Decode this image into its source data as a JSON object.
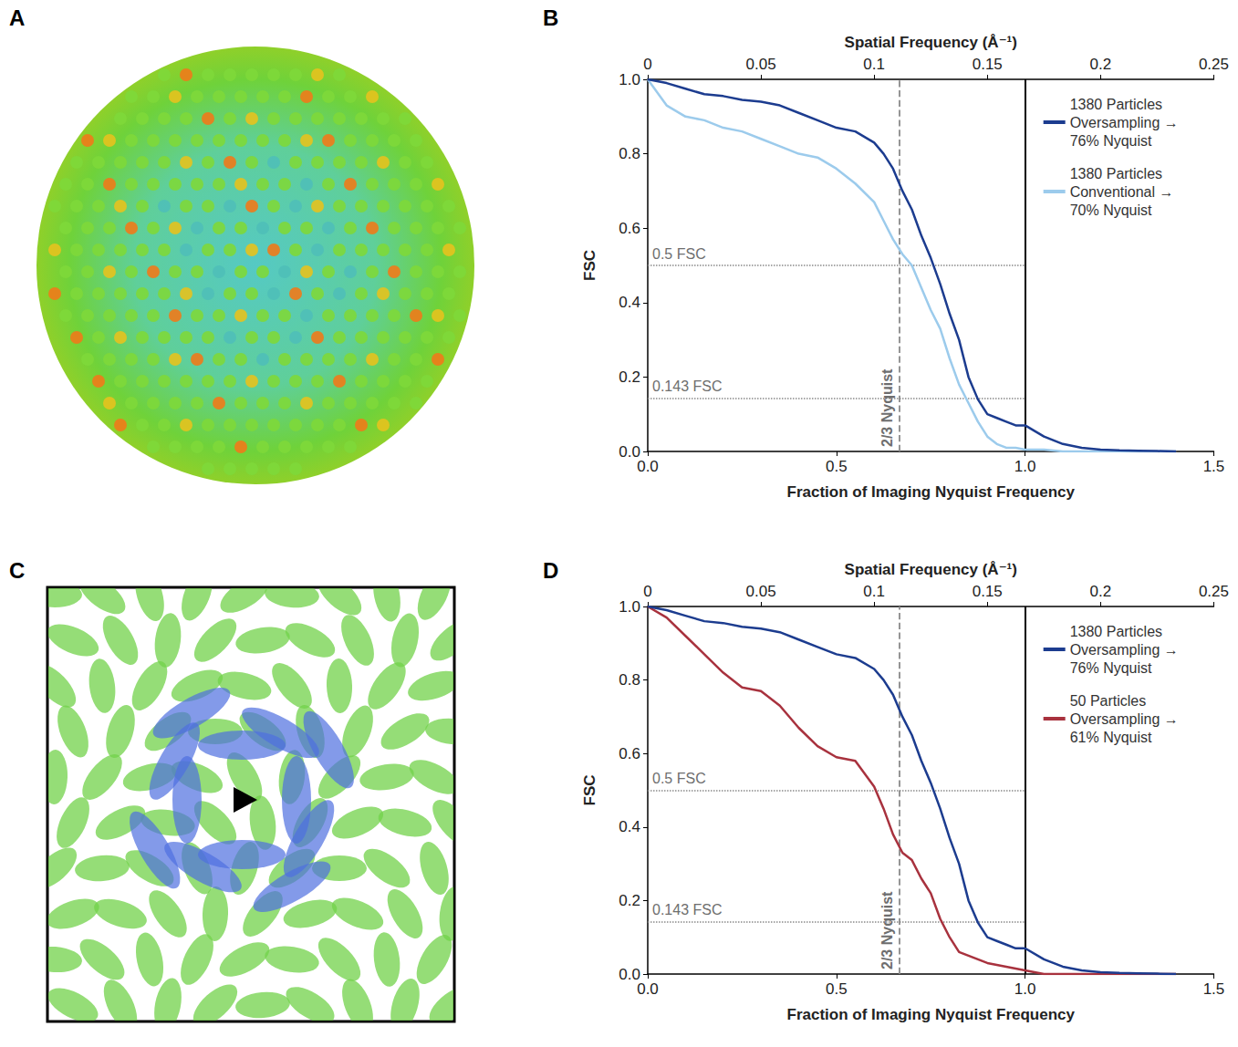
{
  "image_panels": [
    {
      "panel": "A"
    },
    {
      "panel": "C"
    }
  ],
  "chart_data": [
    {
      "panel": "B",
      "type": "line",
      "xlabel": "Fraction of Imaging Nyquist Frequency",
      "ylabel": "FSC",
      "x2label": "Spatial Frequency (Å⁻¹)",
      "xlim": [
        0,
        1.5
      ],
      "xticks": [
        {
          "value": 0,
          "label": "0.0"
        },
        {
          "value": 0.5,
          "label": "0.5"
        },
        {
          "value": 1,
          "label": "1.0"
        },
        {
          "value": 1.5,
          "label": "1.5"
        }
      ],
      "x2lim": [
        0,
        0.25
      ],
      "x2ticks": [
        0,
        0.05,
        0.1,
        0.15,
        0.2,
        0.25
      ],
      "ylim": [
        0,
        1
      ],
      "yticks": [
        {
          "value": 0,
          "label": "0.0"
        },
        {
          "value": 0.2,
          "label": "0.2"
        },
        {
          "value": 0.4,
          "label": "0.4"
        },
        {
          "value": 0.6,
          "label": "0.6"
        },
        {
          "value": 0.8,
          "label": "0.8"
        },
        {
          "value": 1,
          "label": "1.0"
        }
      ],
      "grid": false,
      "legend": "upper right",
      "hlines": [
        {
          "value": 0.5,
          "label": "0.5 FSC",
          "line_style": "dotted"
        },
        {
          "value": 0.143,
          "label": "0.143 FSC",
          "line_style": "dotted"
        }
      ],
      "vlines": [
        {
          "value": 0.6667,
          "label": "2/3 Nyquist",
          "line_style": "dashed"
        },
        {
          "value": 1,
          "line_style": "solid"
        }
      ],
      "x": [
        0,
        0.05,
        0.1,
        0.15,
        0.2,
        0.25,
        0.3,
        0.35,
        0.4,
        0.45,
        0.5,
        0.55,
        0.6,
        0.625,
        0.65,
        0.675,
        0.7,
        0.725,
        0.75,
        0.775,
        0.8,
        0.825,
        0.85,
        0.875,
        0.9,
        0.925,
        0.95,
        0.975,
        1.0,
        1.05,
        1.1,
        1.15,
        1.2,
        1.25,
        1.3,
        1.35,
        1.4
      ],
      "series": [
        {
          "name": "1380 Particles Oversampling → 76% Nyquist",
          "color": "#1c3c8f",
          "values": [
            1.0,
            0.99,
            0.975,
            0.96,
            0.955,
            0.945,
            0.94,
            0.93,
            0.91,
            0.89,
            0.87,
            0.86,
            0.83,
            0.8,
            0.76,
            0.7,
            0.65,
            0.58,
            0.52,
            0.45,
            0.37,
            0.3,
            0.2,
            0.14,
            0.1,
            0.09,
            0.08,
            0.07,
            0.07,
            0.04,
            0.02,
            0.01,
            0.005,
            0.003,
            0.002,
            0.001,
            0.0
          ]
        },
        {
          "name": "1380 Particles Conventional → 70% Nyquist",
          "color": "#9ccbec",
          "values": [
            1.0,
            0.93,
            0.9,
            0.89,
            0.87,
            0.86,
            0.84,
            0.82,
            0.8,
            0.79,
            0.76,
            0.72,
            0.67,
            0.62,
            0.57,
            0.53,
            0.5,
            0.44,
            0.38,
            0.33,
            0.25,
            0.18,
            0.13,
            0.08,
            0.04,
            0.02,
            0.01,
            0.01,
            0.005,
            0.005,
            0.0,
            0.0,
            0.0,
            0.0,
            0.0,
            0.0,
            0.0
          ]
        }
      ]
    },
    {
      "panel": "D",
      "type": "line",
      "xlabel": "Fraction of Imaging Nyquist Frequency",
      "ylabel": "FSC",
      "x2label": "Spatial Frequency (Å⁻¹)",
      "xlim": [
        0,
        1.5
      ],
      "xticks": [
        {
          "value": 0,
          "label": "0.0"
        },
        {
          "value": 0.5,
          "label": "0.5"
        },
        {
          "value": 1,
          "label": "1.0"
        },
        {
          "value": 1.5,
          "label": "1.5"
        }
      ],
      "x2lim": [
        0,
        0.25
      ],
      "x2ticks": [
        0,
        0.05,
        0.1,
        0.15,
        0.2,
        0.25
      ],
      "ylim": [
        0,
        1
      ],
      "yticks": [
        {
          "value": 0,
          "label": "0.0"
        },
        {
          "value": 0.2,
          "label": "0.2"
        },
        {
          "value": 0.4,
          "label": "0.4"
        },
        {
          "value": 0.6,
          "label": "0.6"
        },
        {
          "value": 0.8,
          "label": "0.8"
        },
        {
          "value": 1,
          "label": "1.0"
        }
      ],
      "grid": false,
      "legend": "upper right",
      "hlines": [
        {
          "value": 0.5,
          "label": "0.5 FSC",
          "line_style": "dotted"
        },
        {
          "value": 0.143,
          "label": "0.143 FSC",
          "line_style": "dotted"
        }
      ],
      "vlines": [
        {
          "value": 0.6667,
          "label": "2/3 Nyquist",
          "line_style": "dashed"
        },
        {
          "value": 1,
          "line_style": "solid"
        }
      ],
      "x": [
        0,
        0.05,
        0.1,
        0.15,
        0.2,
        0.25,
        0.3,
        0.35,
        0.4,
        0.45,
        0.5,
        0.55,
        0.6,
        0.625,
        0.65,
        0.675,
        0.7,
        0.725,
        0.75,
        0.775,
        0.8,
        0.825,
        0.85,
        0.875,
        0.9,
        0.925,
        0.95,
        0.975,
        1.0,
        1.05,
        1.1,
        1.15,
        1.2,
        1.25,
        1.3,
        1.35,
        1.4
      ],
      "series": [
        {
          "name": "1380 Particles Oversampling → 76% Nyquist",
          "color": "#1c3c8f",
          "values": [
            1.0,
            0.99,
            0.975,
            0.96,
            0.955,
            0.945,
            0.94,
            0.93,
            0.91,
            0.89,
            0.87,
            0.86,
            0.83,
            0.8,
            0.76,
            0.7,
            0.65,
            0.58,
            0.52,
            0.45,
            0.37,
            0.3,
            0.2,
            0.14,
            0.1,
            0.09,
            0.08,
            0.07,
            0.07,
            0.04,
            0.02,
            0.01,
            0.005,
            0.003,
            0.002,
            0.001,
            0.0
          ]
        },
        {
          "name": "50 Particles Oversampling → 61% Nyquist",
          "color": "#a8323e",
          "values": [
            1.0,
            0.97,
            0.92,
            0.87,
            0.82,
            0.78,
            0.77,
            0.73,
            0.67,
            0.62,
            0.59,
            0.58,
            0.51,
            0.45,
            0.38,
            0.33,
            0.31,
            0.26,
            0.22,
            0.15,
            0.1,
            0.06,
            0.05,
            0.04,
            0.03,
            0.025,
            0.02,
            0.015,
            0.01,
            0.0,
            0.0,
            0.0,
            0.0,
            0.0,
            0.0,
            0.0,
            0.0
          ]
        }
      ]
    }
  ]
}
